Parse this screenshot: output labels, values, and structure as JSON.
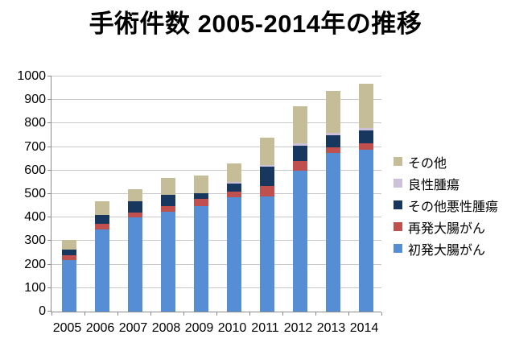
{
  "title": "手術件数 2005-2014年の推移",
  "chart_data": {
    "type": "bar",
    "subtype": "stacked",
    "title": "手術件数 2005-2014年の推移",
    "xlabel": "",
    "ylabel": "",
    "ylim": [
      0,
      1000
    ],
    "yticks": [
      0,
      100,
      200,
      300,
      400,
      500,
      600,
      700,
      800,
      900,
      1000
    ],
    "grid": "horizontal",
    "legend_position": "right",
    "categories": [
      "2005",
      "2006",
      "2007",
      "2008",
      "2009",
      "2010",
      "2011",
      "2012",
      "2013",
      "2014"
    ],
    "series": [
      {
        "name": "初発大腸がん",
        "color": "#558ED5",
        "values": [
          220,
          350,
          400,
          425,
          450,
          485,
          490,
          600,
          675,
          690
        ]
      },
      {
        "name": "再発大腸がん",
        "color": "#C0504D",
        "values": [
          20,
          25,
          20,
          25,
          30,
          25,
          45,
          40,
          25,
          25
        ]
      },
      {
        "name": "その他悪性腫瘍",
        "color": "#17375E",
        "values": [
          25,
          35,
          50,
          45,
          25,
          35,
          80,
          65,
          50,
          55
        ]
      },
      {
        "name": "良性腫瘍",
        "color": "#CCC0DA",
        "values": [
          0,
          0,
          0,
          0,
          0,
          5,
          10,
          10,
          10,
          10
        ]
      },
      {
        "name": "その他",
        "color": "#C4BD97",
        "values": [
          40,
          60,
          50,
          75,
          75,
          80,
          115,
          160,
          180,
          190
        ]
      }
    ],
    "totals": [
      305,
      470,
      520,
      570,
      580,
      630,
      740,
      875,
      940,
      970
    ],
    "legend": [
      {
        "label": "その他",
        "color": "#C4BD97"
      },
      {
        "label": "良性腫瘍",
        "color": "#CCC0DA"
      },
      {
        "label": "その他悪性腫瘍",
        "color": "#17375E"
      },
      {
        "label": "再発大腸がん",
        "color": "#C0504D"
      },
      {
        "label": "初発大腸がん",
        "color": "#558ED5"
      }
    ]
  }
}
